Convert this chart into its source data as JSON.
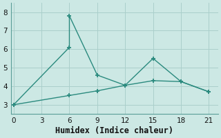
{
  "line1_x": [
    0,
    6,
    6,
    9,
    12,
    15,
    18,
    21
  ],
  "line1_y": [
    3.0,
    6.1,
    7.8,
    4.6,
    4.05,
    5.5,
    4.25,
    3.7
  ],
  "line2_x": [
    0,
    6,
    9,
    12,
    15,
    18,
    21
  ],
  "line2_y": [
    3.0,
    3.5,
    3.75,
    4.05,
    4.3,
    4.25,
    3.7
  ],
  "line_color": "#2a8a7e",
  "bg_color": "#cce8e4",
  "grid_color": "#aacfcb",
  "xlabel": "Humidex (Indice chaleur)",
  "xticks": [
    0,
    3,
    6,
    9,
    12,
    15,
    18,
    21
  ],
  "yticks": [
    3,
    4,
    5,
    6,
    7,
    8
  ],
  "xlim": [
    -0.3,
    22.0
  ],
  "ylim": [
    2.5,
    8.5
  ],
  "marker": "+",
  "markersize": 5,
  "markeredgewidth": 1.3,
  "linewidth": 1.0,
  "xlabel_fontsize": 8.5
}
